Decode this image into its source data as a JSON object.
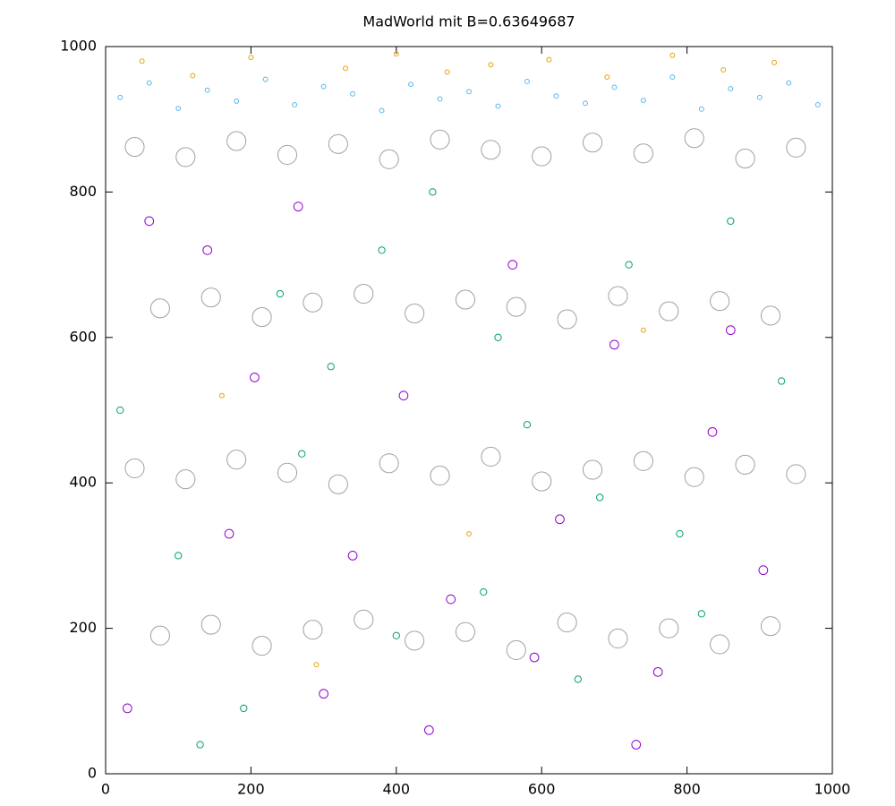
{
  "chart_data": {
    "type": "scatter",
    "title": "MadWorld mit B=0.63649687",
    "xlim": [
      0,
      1000
    ],
    "ylim": [
      0,
      1000
    ],
    "xticks": [
      0,
      200,
      400,
      600,
      800,
      1000
    ],
    "yticks": [
      0,
      200,
      400,
      600,
      800,
      1000
    ],
    "series": [
      {
        "color": "#a0a0a0",
        "marker_radius": 13,
        "x": [
          40,
          110,
          180,
          250,
          320,
          390,
          460,
          530,
          600,
          670,
          740,
          810,
          880,
          950,
          75,
          145,
          215,
          285,
          355,
          425,
          495,
          565,
          635,
          705,
          775,
          845,
          915,
          40,
          110,
          180,
          250,
          320,
          390,
          460,
          530,
          600,
          670,
          740,
          810,
          880,
          950,
          75,
          145,
          215,
          285,
          355,
          425,
          495,
          565,
          635,
          705,
          775,
          845,
          915
        ],
        "values": [
          862,
          848,
          870,
          851,
          866,
          845,
          872,
          858,
          849,
          868,
          853,
          874,
          846,
          861,
          640,
          655,
          628,
          648,
          660,
          633,
          652,
          642,
          625,
          657,
          636,
          650,
          630,
          420,
          405,
          432,
          414,
          398,
          427,
          410,
          436,
          402,
          418,
          430,
          408,
          425,
          412,
          190,
          205,
          176,
          198,
          212,
          183,
          195,
          170,
          208,
          186,
          200,
          178,
          203
        ]
      },
      {
        "color": "#9400d3",
        "marker_radius": 6,
        "x": [
          60,
          140,
          205,
          265,
          340,
          410,
          475,
          560,
          625,
          700,
          760,
          835,
          905,
          30,
          170,
          300,
          445,
          590,
          730,
          860
        ],
        "values": [
          760,
          720,
          545,
          780,
          300,
          520,
          240,
          700,
          350,
          590,
          140,
          470,
          280,
          90,
          330,
          110,
          60,
          160,
          40,
          610
        ]
      },
      {
        "color": "#009e73",
        "marker_radius": 4.5,
        "x": [
          20,
          100,
          190,
          240,
          310,
          380,
          450,
          520,
          580,
          650,
          720,
          790,
          860,
          930,
          130,
          270,
          400,
          540,
          680,
          820
        ],
        "values": [
          500,
          300,
          90,
          660,
          560,
          720,
          800,
          250,
          480,
          130,
          700,
          330,
          760,
          540,
          40,
          440,
          190,
          600,
          380,
          220
        ]
      },
      {
        "color": "#e69f00",
        "marker_radius": 3,
        "x": [
          50,
          120,
          200,
          330,
          400,
          470,
          530,
          610,
          690,
          780,
          850,
          920,
          160,
          290,
          500,
          740
        ],
        "values": [
          980,
          960,
          985,
          970,
          990,
          965,
          975,
          982,
          958,
          988,
          968,
          978,
          520,
          150,
          330,
          610
        ]
      },
      {
        "color": "#56b4e9",
        "marker_radius": 3,
        "x": [
          20,
          60,
          100,
          140,
          180,
          220,
          260,
          300,
          340,
          380,
          420,
          460,
          500,
          540,
          580,
          620,
          660,
          700,
          740,
          780,
          820,
          860,
          900,
          940,
          980
        ],
        "values": [
          930,
          950,
          915,
          940,
          925,
          955,
          920,
          945,
          935,
          912,
          948,
          928,
          938,
          918,
          952,
          932,
          922,
          944,
          926,
          958,
          914,
          942,
          930,
          950,
          920
        ]
      }
    ]
  }
}
